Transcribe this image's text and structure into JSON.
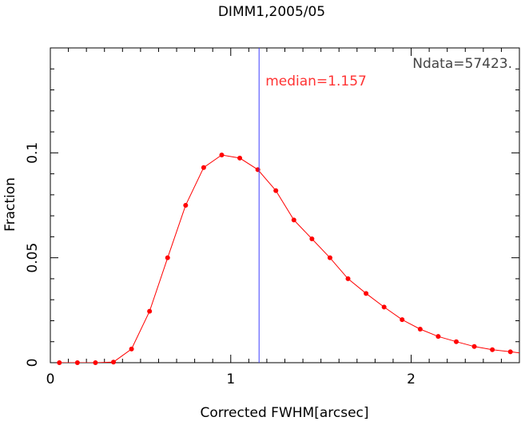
{
  "chart_data": {
    "type": "line",
    "title": "DIMM1,2005/05",
    "xlabel": "Corrected FWHM[arcsec]",
    "ylabel": "Fraction",
    "xlim": [
      0,
      2.6
    ],
    "ylim": [
      0,
      0.15
    ],
    "x_ticks": [
      {
        "value": 0,
        "label": "0"
      },
      {
        "value": 1,
        "label": "1"
      },
      {
        "value": 2,
        "label": "2"
      }
    ],
    "y_ticks": [
      {
        "value": 0,
        "label": "0"
      },
      {
        "value": 0.05,
        "label": "0.05"
      },
      {
        "value": 0.1,
        "label": "0.1"
      }
    ],
    "x_minor_step": 0.1,
    "y_minor_step": 0.01,
    "series": [
      {
        "color": "#ff0000",
        "x": [
          0.05,
          0.15,
          0.25,
          0.35,
          0.45,
          0.55,
          0.65,
          0.75,
          0.85,
          0.95,
          1.05,
          1.15,
          1.25,
          1.35,
          1.45,
          1.55,
          1.65,
          1.75,
          1.85,
          1.95,
          2.05,
          2.15,
          2.25,
          2.35,
          2.45,
          2.55
        ],
        "y": [
          0.0,
          0.0,
          0.0,
          0.0003,
          0.0065,
          0.0245,
          0.05,
          0.075,
          0.093,
          0.099,
          0.0975,
          0.092,
          0.082,
          0.068,
          0.059,
          0.05,
          0.04,
          0.033,
          0.0265,
          0.0205,
          0.016,
          0.0125,
          0.01,
          0.0077,
          0.0062,
          0.0052
        ]
      }
    ],
    "median": {
      "value": 1.157,
      "label": "median=1.157",
      "line_color": "#4040ff",
      "label_color": "#ff3333"
    },
    "annotation": {
      "text": "Ndata=57423.",
      "color": "#444444"
    }
  }
}
